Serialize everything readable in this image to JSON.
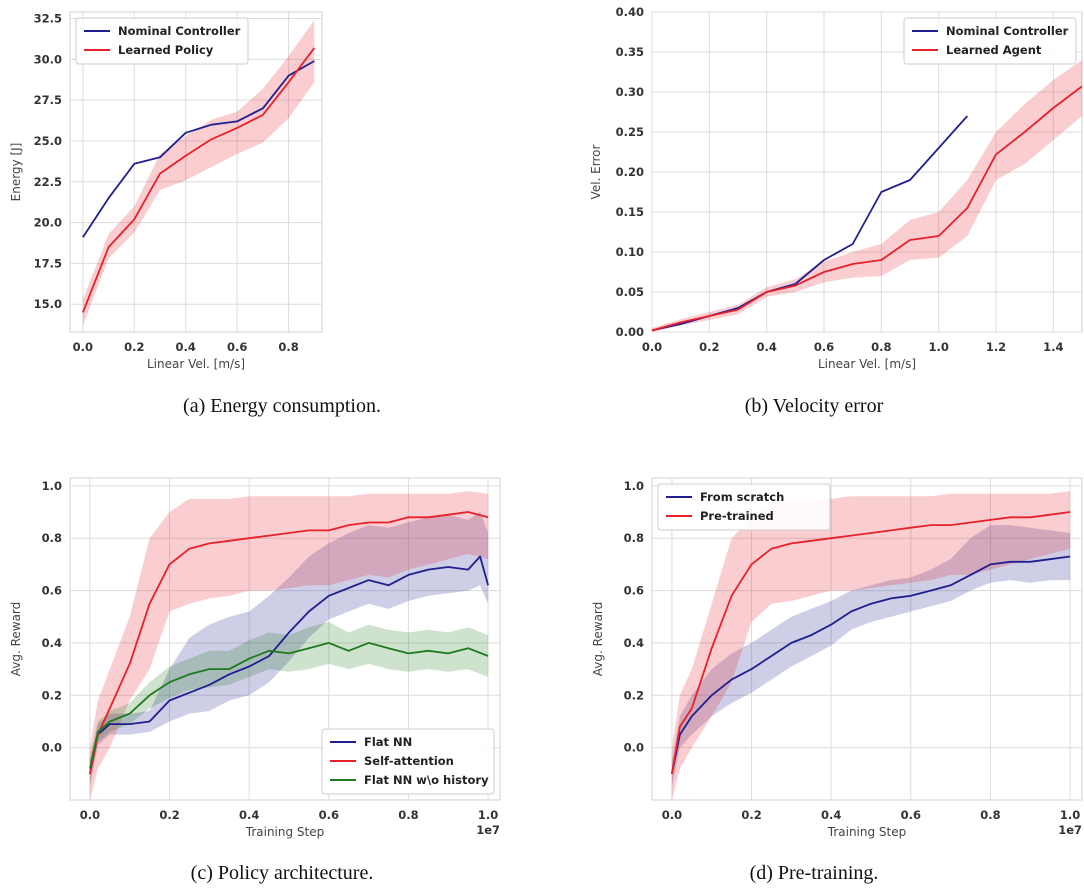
{
  "chart_data": [
    {
      "type": "line",
      "caption": "(a) Energy consumption.",
      "xlabel": "Linear Vel. [m/s]",
      "ylabel": "Energy [J]",
      "xlim": [
        -0.05,
        0.93
      ],
      "ylim": [
        13.3,
        32.9
      ],
      "xticks": [
        0.0,
        0.2,
        0.4,
        0.6,
        0.8
      ],
      "xtick_labels": [
        "0.0",
        "0.2",
        "0.4",
        "0.6",
        "0.8"
      ],
      "yticks": [
        15.0,
        17.5,
        20.0,
        22.5,
        25.0,
        27.5,
        30.0,
        32.5
      ],
      "ytick_labels": [
        "15.0",
        "17.5",
        "20.0",
        "22.5",
        "25.0",
        "27.5",
        "30.0",
        "32.5"
      ],
      "grid": true,
      "legend_position": "top-left",
      "series": [
        {
          "name": "Nominal Controller",
          "color": "#1f1f8f",
          "x": [
            0.0,
            0.1,
            0.2,
            0.3,
            0.4,
            0.5,
            0.6,
            0.7,
            0.8,
            0.9
          ],
          "y": [
            19.1,
            21.5,
            23.6,
            24.0,
            25.5,
            26.0,
            26.2,
            27.0,
            29.0,
            29.9
          ]
        },
        {
          "name": "Learned Policy",
          "color": "#e8202a",
          "x": [
            0.0,
            0.1,
            0.2,
            0.3,
            0.4,
            0.5,
            0.6,
            0.7,
            0.8,
            0.9
          ],
          "y": [
            14.5,
            18.5,
            20.2,
            23.0,
            24.1,
            25.1,
            25.8,
            26.6,
            28.6,
            30.7
          ],
          "lower": [
            13.7,
            17.8,
            19.4,
            22.0,
            22.6,
            23.4,
            24.2,
            24.9,
            26.4,
            28.6
          ],
          "upper": [
            15.3,
            19.3,
            21.0,
            24.2,
            25.3,
            26.3,
            26.8,
            28.2,
            30.2,
            32.4
          ]
        }
      ]
    },
    {
      "type": "line",
      "caption": "(b) Velocity error",
      "xlabel": "Linear Vel. [m/s]",
      "ylabel": "Vel. Error",
      "xlim": [
        0.0,
        1.5
      ],
      "ylim": [
        0.0,
        0.4
      ],
      "xticks": [
        0.0,
        0.2,
        0.4,
        0.6,
        0.8,
        1.0,
        1.2,
        1.4
      ],
      "xtick_labels": [
        "0.0",
        "0.2",
        "0.4",
        "0.6",
        "0.8",
        "1.0",
        "1.2",
        "1.4"
      ],
      "yticks": [
        0.0,
        0.05,
        0.1,
        0.15,
        0.2,
        0.25,
        0.3,
        0.35,
        0.4
      ],
      "ytick_labels": [
        "0.00",
        "0.05",
        "0.10",
        "0.15",
        "0.20",
        "0.25",
        "0.30",
        "0.35",
        "0.40"
      ],
      "grid": true,
      "legend_position": "top-right",
      "series": [
        {
          "name": "Nominal Controller",
          "color": "#1f1f8f",
          "x": [
            0.0,
            0.1,
            0.2,
            0.3,
            0.4,
            0.5,
            0.6,
            0.7,
            0.8,
            0.9,
            1.0,
            1.1
          ],
          "y": [
            0.002,
            0.01,
            0.02,
            0.03,
            0.05,
            0.06,
            0.09,
            0.11,
            0.175,
            0.19,
            0.23,
            0.27
          ]
        },
        {
          "name": "Learned Agent",
          "color": "#e8202a",
          "x": [
            0.0,
            0.1,
            0.2,
            0.3,
            0.4,
            0.5,
            0.6,
            0.7,
            0.8,
            0.9,
            1.0,
            1.1,
            1.2,
            1.3,
            1.4,
            1.5
          ],
          "y": [
            0.002,
            0.012,
            0.02,
            0.028,
            0.05,
            0.058,
            0.075,
            0.085,
            0.09,
            0.115,
            0.12,
            0.155,
            0.222,
            0.25,
            0.28,
            0.307
          ],
          "lower": [
            0.0,
            0.008,
            0.015,
            0.022,
            0.044,
            0.05,
            0.062,
            0.068,
            0.07,
            0.09,
            0.093,
            0.12,
            0.19,
            0.21,
            0.24,
            0.27
          ],
          "upper": [
            0.005,
            0.016,
            0.025,
            0.034,
            0.056,
            0.066,
            0.088,
            0.1,
            0.11,
            0.14,
            0.15,
            0.19,
            0.25,
            0.285,
            0.315,
            0.34
          ]
        }
      ]
    },
    {
      "type": "line",
      "caption": "(c) Policy architecture.",
      "xlabel": "Training Step",
      "ylabel": "Avg. Reward",
      "x_scale_label": "1e7",
      "xlim": [
        -0.05,
        1.03
      ],
      "ylim": [
        -0.2,
        1.03
      ],
      "xticks": [
        0.0,
        0.2,
        0.4,
        0.6,
        0.8,
        1.0
      ],
      "xtick_labels": [
        "0.0",
        "0.2",
        "0.4",
        "0.6",
        "0.8",
        "1.0"
      ],
      "yticks": [
        0.0,
        0.2,
        0.4,
        0.6,
        0.8,
        1.0
      ],
      "ytick_labels": [
        "0.0",
        "0.2",
        "0.4",
        "0.6",
        "0.8",
        "1.0"
      ],
      "grid": true,
      "legend_position": "bottom-right",
      "series": [
        {
          "name": "Flat NN",
          "color": "#1f1f8f",
          "x": [
            0.0,
            0.02,
            0.05,
            0.1,
            0.15,
            0.2,
            0.25,
            0.3,
            0.35,
            0.4,
            0.45,
            0.5,
            0.55,
            0.6,
            0.65,
            0.7,
            0.75,
            0.8,
            0.85,
            0.9,
            0.95,
            0.98,
            1.0
          ],
          "y": [
            -0.1,
            0.05,
            0.09,
            0.09,
            0.1,
            0.18,
            0.21,
            0.24,
            0.28,
            0.31,
            0.35,
            0.44,
            0.52,
            0.58,
            0.61,
            0.64,
            0.62,
            0.66,
            0.68,
            0.69,
            0.68,
            0.73,
            0.62
          ],
          "lower": [
            -0.15,
            0.01,
            0.05,
            0.05,
            0.06,
            0.1,
            0.13,
            0.14,
            0.18,
            0.2,
            0.25,
            0.33,
            0.42,
            0.49,
            0.52,
            0.55,
            0.53,
            0.56,
            0.58,
            0.59,
            0.6,
            0.62,
            0.55
          ],
          "upper": [
            -0.05,
            0.09,
            0.13,
            0.13,
            0.14,
            0.3,
            0.42,
            0.47,
            0.5,
            0.52,
            0.58,
            0.65,
            0.73,
            0.78,
            0.82,
            0.85,
            0.84,
            0.86,
            0.88,
            0.89,
            0.87,
            0.9,
            0.82
          ]
        },
        {
          "name": "Self-attention",
          "color": "#e8202a",
          "x": [
            0.0,
            0.02,
            0.05,
            0.1,
            0.15,
            0.2,
            0.25,
            0.3,
            0.35,
            0.4,
            0.45,
            0.5,
            0.55,
            0.6,
            0.65,
            0.7,
            0.75,
            0.8,
            0.85,
            0.9,
            0.95,
            1.0
          ],
          "y": [
            -0.1,
            0.05,
            0.15,
            0.32,
            0.55,
            0.7,
            0.76,
            0.78,
            0.79,
            0.8,
            0.81,
            0.82,
            0.83,
            0.83,
            0.85,
            0.86,
            0.86,
            0.88,
            0.88,
            0.89,
            0.9,
            0.88
          ],
          "lower": [
            -0.2,
            -0.08,
            0.0,
            0.18,
            0.3,
            0.52,
            0.55,
            0.57,
            0.58,
            0.6,
            0.6,
            0.61,
            0.62,
            0.62,
            0.64,
            0.66,
            0.65,
            0.68,
            0.7,
            0.72,
            0.74,
            0.72
          ],
          "upper": [
            0.0,
            0.18,
            0.3,
            0.5,
            0.8,
            0.9,
            0.95,
            0.95,
            0.95,
            0.96,
            0.96,
            0.96,
            0.96,
            0.96,
            0.96,
            0.97,
            0.97,
            0.97,
            0.97,
            0.97,
            0.98,
            0.97
          ]
        },
        {
          "name": "Flat NN w\\o history",
          "color": "#1e7a1e",
          "x": [
            0.0,
            0.02,
            0.05,
            0.1,
            0.15,
            0.2,
            0.25,
            0.3,
            0.35,
            0.4,
            0.45,
            0.5,
            0.55,
            0.6,
            0.65,
            0.7,
            0.75,
            0.8,
            0.85,
            0.9,
            0.95,
            1.0
          ],
          "y": [
            -0.08,
            0.06,
            0.1,
            0.13,
            0.2,
            0.25,
            0.28,
            0.3,
            0.3,
            0.34,
            0.37,
            0.36,
            0.38,
            0.4,
            0.37,
            0.4,
            0.38,
            0.36,
            0.37,
            0.36,
            0.38,
            0.35
          ],
          "lower": [
            -0.12,
            0.02,
            0.06,
            0.09,
            0.15,
            0.19,
            0.22,
            0.23,
            0.24,
            0.27,
            0.3,
            0.29,
            0.3,
            0.32,
            0.3,
            0.32,
            0.3,
            0.29,
            0.3,
            0.29,
            0.3,
            0.27
          ],
          "upper": [
            -0.04,
            0.1,
            0.14,
            0.17,
            0.25,
            0.31,
            0.34,
            0.37,
            0.37,
            0.41,
            0.44,
            0.43,
            0.46,
            0.48,
            0.44,
            0.47,
            0.45,
            0.44,
            0.45,
            0.44,
            0.46,
            0.43
          ]
        }
      ]
    },
    {
      "type": "line",
      "caption": "(d) Pre-training.",
      "xlabel": "Training Step",
      "ylabel": "Avg. Reward",
      "x_scale_label": "1e7",
      "xlim": [
        -0.05,
        1.03
      ],
      "ylim": [
        -0.2,
        1.03
      ],
      "xticks": [
        0.0,
        0.2,
        0.4,
        0.6,
        0.8,
        1.0
      ],
      "xtick_labels": [
        "0.0",
        "0.2",
        "0.4",
        "0.6",
        "0.8",
        "1.0"
      ],
      "yticks": [
        0.0,
        0.2,
        0.4,
        0.6,
        0.8,
        1.0
      ],
      "ytick_labels": [
        "0.0",
        "0.2",
        "0.4",
        "0.6",
        "0.8",
        "1.0"
      ],
      "grid": true,
      "legend_position": "top-left",
      "series": [
        {
          "name": "From scratch",
          "color": "#1f1f8f",
          "x": [
            0.0,
            0.02,
            0.05,
            0.1,
            0.15,
            0.2,
            0.25,
            0.3,
            0.35,
            0.4,
            0.45,
            0.5,
            0.55,
            0.6,
            0.65,
            0.7,
            0.75,
            0.8,
            0.85,
            0.9,
            0.95,
            1.0
          ],
          "y": [
            -0.1,
            0.05,
            0.12,
            0.2,
            0.26,
            0.3,
            0.35,
            0.4,
            0.43,
            0.47,
            0.52,
            0.55,
            0.57,
            0.58,
            0.6,
            0.62,
            0.66,
            0.7,
            0.71,
            0.71,
            0.72,
            0.73
          ],
          "lower": [
            -0.15,
            0.0,
            0.05,
            0.12,
            0.17,
            0.21,
            0.26,
            0.31,
            0.35,
            0.39,
            0.45,
            0.48,
            0.5,
            0.52,
            0.54,
            0.56,
            0.6,
            0.63,
            0.64,
            0.63,
            0.64,
            0.64
          ],
          "upper": [
            -0.05,
            0.12,
            0.2,
            0.3,
            0.36,
            0.4,
            0.45,
            0.5,
            0.53,
            0.56,
            0.6,
            0.62,
            0.64,
            0.65,
            0.68,
            0.72,
            0.8,
            0.85,
            0.85,
            0.84,
            0.83,
            0.82
          ]
        },
        {
          "name": "Pre-trained",
          "color": "#e8202a",
          "x": [
            0.0,
            0.02,
            0.05,
            0.1,
            0.15,
            0.2,
            0.25,
            0.3,
            0.35,
            0.4,
            0.45,
            0.5,
            0.55,
            0.6,
            0.65,
            0.7,
            0.75,
            0.8,
            0.85,
            0.9,
            0.95,
            1.0
          ],
          "y": [
            -0.1,
            0.08,
            0.15,
            0.38,
            0.58,
            0.7,
            0.76,
            0.78,
            0.79,
            0.8,
            0.81,
            0.82,
            0.83,
            0.84,
            0.85,
            0.85,
            0.86,
            0.87,
            0.88,
            0.88,
            0.89,
            0.9
          ],
          "lower": [
            -0.2,
            -0.08,
            0.0,
            0.12,
            0.25,
            0.48,
            0.55,
            0.56,
            0.58,
            0.6,
            0.6,
            0.61,
            0.62,
            0.63,
            0.64,
            0.66,
            0.66,
            0.68,
            0.7,
            0.72,
            0.74,
            0.76
          ],
          "upper": [
            0.0,
            0.2,
            0.3,
            0.55,
            0.8,
            0.88,
            0.94,
            0.95,
            0.95,
            0.95,
            0.96,
            0.96,
            0.96,
            0.96,
            0.96,
            0.97,
            0.97,
            0.97,
            0.97,
            0.97,
            0.97,
            0.98
          ]
        }
      ]
    }
  ]
}
